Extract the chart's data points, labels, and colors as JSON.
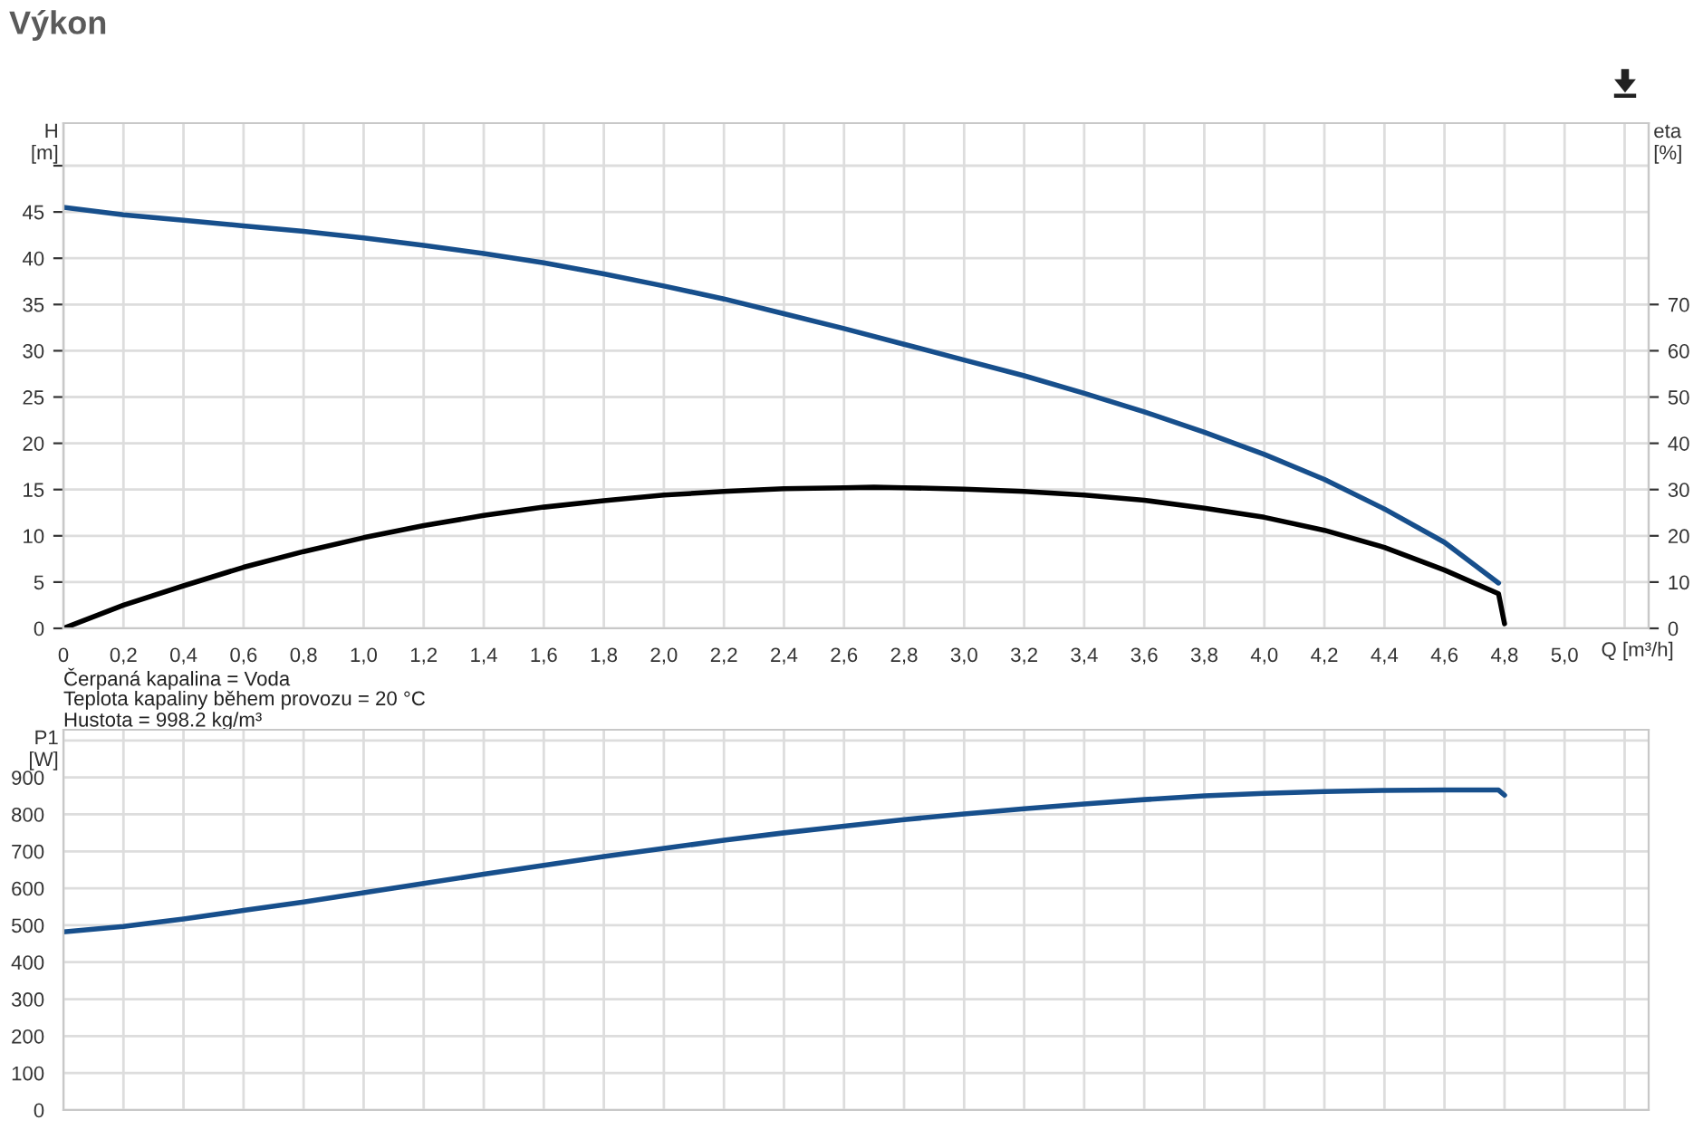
{
  "chart_data": [
    {
      "type": "line",
      "title": "Výkon",
      "xlabel": "Q [m³/h]",
      "ylabel": "H\n[m]",
      "y2label": "eta\n[%]",
      "annotations": [
        "Čerpaná kapalina = Voda",
        "Teplota kapaliny během provozu = 20 °C",
        "Hustota = 998.2 kg/m³"
      ],
      "xlim": [
        0,
        5.28
      ],
      "ylim": [
        0,
        54.6
      ],
      "y2lim": [
        0,
        109.2
      ],
      "xticks": [
        0,
        {
          "value": 0.2,
          "label": "0,2"
        },
        {
          "value": 0.4,
          "label": "0,4"
        },
        {
          "value": 0.6,
          "label": "0,6"
        },
        {
          "value": 0.8,
          "label": "0,8"
        },
        {
          "value": 1.0,
          "label": "1,0"
        },
        {
          "value": 1.2,
          "label": "1,2"
        },
        {
          "value": 1.4,
          "label": "1,4"
        },
        {
          "value": 1.6,
          "label": "1,6"
        },
        {
          "value": 1.8,
          "label": "1,8"
        },
        {
          "value": 2.0,
          "label": "2,0"
        },
        {
          "value": 2.2,
          "label": "2,2"
        },
        {
          "value": 2.4,
          "label": "2,4"
        },
        {
          "value": 2.6,
          "label": "2,6"
        },
        {
          "value": 2.8,
          "label": "2,8"
        },
        {
          "value": 3.0,
          "label": "3,0"
        },
        {
          "value": 3.2,
          "label": "3,2"
        },
        {
          "value": 3.4,
          "label": "3,4"
        },
        {
          "value": 3.6,
          "label": "3,6"
        },
        {
          "value": 3.8,
          "label": "3,8"
        },
        {
          "value": 4.0,
          "label": "4,0"
        },
        {
          "value": 4.2,
          "label": "4,2"
        },
        {
          "value": 4.4,
          "label": "4,4"
        },
        {
          "value": 4.6,
          "label": "4,6"
        },
        {
          "value": 4.8,
          "label": "4,8"
        },
        {
          "value": 5.0,
          "label": "5,0"
        },
        {
          "value": 5.2,
          "label": null
        }
      ],
      "yticks": [
        0,
        5,
        10,
        15,
        20,
        25,
        30,
        35,
        40,
        45,
        {
          "value": 50,
          "label": null
        }
      ],
      "y2ticks": [
        0,
        10,
        20,
        30,
        40,
        50,
        60,
        70
      ],
      "grid": true,
      "legend": false,
      "marker": "none",
      "line_style": "solid",
      "series": [
        {
          "color": "#174f8c",
          "x": [
            0,
            0.2,
            0.4,
            0.6,
            0.8,
            1.0,
            1.2,
            1.4,
            1.6,
            1.8,
            2.0,
            2.2,
            2.4,
            2.6,
            2.8,
            3.0,
            3.2,
            3.4,
            3.6,
            3.8,
            4.0,
            4.2,
            4.4,
            4.6,
            4.78
          ],
          "values": [
            45.5,
            44.7,
            44.1,
            43.5,
            42.9,
            42.2,
            41.4,
            40.5,
            39.5,
            38.3,
            37.0,
            35.6,
            34.0,
            32.4,
            30.7,
            29.0,
            27.3,
            25.4,
            23.4,
            21.2,
            18.8,
            16.1,
            12.9,
            9.3,
            4.9
          ]
        },
        {
          "color": "#000000",
          "axis": "y2",
          "x": [
            0,
            0.2,
            0.4,
            0.6,
            0.8,
            1.0,
            1.2,
            1.4,
            1.6,
            1.8,
            2.0,
            2.2,
            2.4,
            2.6,
            2.7,
            2.8,
            3.0,
            3.2,
            3.4,
            3.6,
            3.8,
            4.0,
            4.2,
            4.4,
            4.6,
            4.78,
            4.8
          ],
          "values": [
            0,
            5,
            9.2,
            13.2,
            16.6,
            19.6,
            22.2,
            24.4,
            26.2,
            27.6,
            28.8,
            29.6,
            30.2,
            30.4,
            30.5,
            30.4,
            30.1,
            29.6,
            28.8,
            27.7,
            26.0,
            24.0,
            21.2,
            17.5,
            12.6,
            7.5,
            1.0
          ]
        }
      ]
    },
    {
      "type": "line",
      "ylabel": "P1\n[W]",
      "xlim": [
        0,
        5.28
      ],
      "ylim": [
        0,
        1029
      ],
      "xticks": [
        0,
        0.2,
        0.4,
        0.6,
        0.8,
        1.0,
        1.2,
        1.4,
        1.6,
        1.8,
        2.0,
        2.2,
        2.4,
        2.6,
        2.8,
        3.0,
        3.2,
        3.4,
        3.6,
        3.8,
        4.0,
        4.2,
        4.4,
        4.6,
        4.8,
        5.0,
        5.2
      ],
      "yticks": [
        0,
        100,
        200,
        300,
        400,
        500,
        600,
        700,
        800,
        900,
        {
          "value": 1000,
          "label": null
        }
      ],
      "tick_labels": "y",
      "grid": true,
      "legend": false,
      "marker": "none",
      "line_style": "solid",
      "series": [
        {
          "color": "#174f8c",
          "x": [
            0,
            0.2,
            0.4,
            0.6,
            0.8,
            1.0,
            1.2,
            1.4,
            1.6,
            1.8,
            2.0,
            2.2,
            2.4,
            2.6,
            2.8,
            3.0,
            3.2,
            3.4,
            3.6,
            3.8,
            4.0,
            4.2,
            4.4,
            4.6,
            4.78,
            4.8
          ],
          "values": [
            482,
            497,
            517,
            540,
            563,
            588,
            613,
            638,
            662,
            686,
            708,
            730,
            750,
            768,
            786,
            801,
            815,
            828,
            840,
            850,
            857,
            862,
            865,
            866,
            866,
            852
          ]
        }
      ]
    }
  ]
}
